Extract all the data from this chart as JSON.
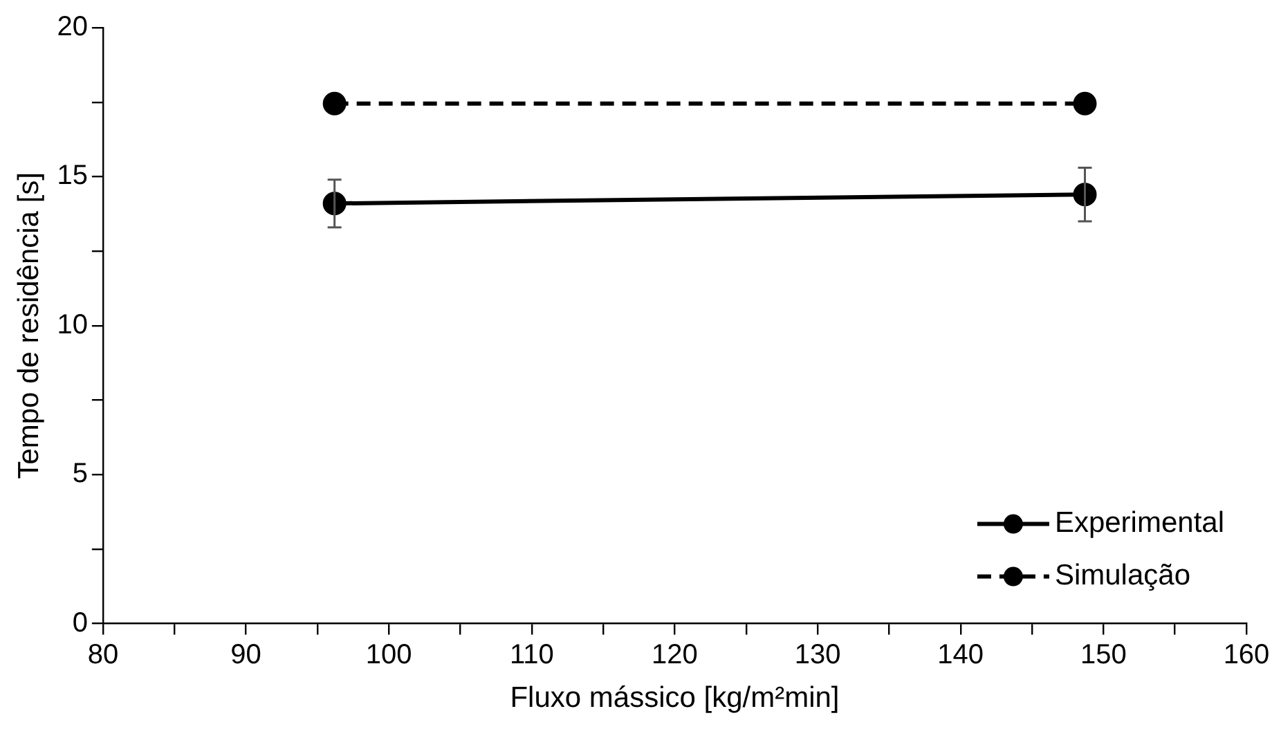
{
  "chart_data": {
    "type": "line",
    "xlabel": "Fluxo mássico [kg/m²min]",
    "ylabel": "Tempo de residência [s]",
    "xlim": [
      80,
      160
    ],
    "xticks": [
      80,
      {
        "value": 85,
        "label": null
      },
      90,
      {
        "value": 95,
        "label": null
      },
      100,
      {
        "value": 105,
        "label": null
      },
      110,
      {
        "value": 115,
        "label": null
      },
      120,
      {
        "value": 125,
        "label": null
      },
      130,
      {
        "value": 135,
        "label": null
      },
      140,
      {
        "value": 145,
        "label": null
      },
      150,
      {
        "value": 155,
        "label": null
      },
      160
    ],
    "ylim": [
      0,
      20
    ],
    "yticks": [
      0,
      {
        "value": 2.5,
        "label": null
      },
      5,
      {
        "value": 7.5,
        "label": null
      },
      10,
      {
        "value": 12.5,
        "label": null
      },
      15,
      {
        "value": 17.5,
        "label": null
      },
      20
    ],
    "x": [
      96.2,
      148.7
    ],
    "grid": false,
    "legend": "bottom right",
    "marker": "circle",
    "series": [
      {
        "name": "Experimental",
        "color": "#000000",
        "line_style": "solid",
        "values": [
          14.1,
          14.4
        ],
        "errors": [
          0.8,
          0.9
        ]
      },
      {
        "name": "Simulação",
        "color": "#000000",
        "line_style": "dashed",
        "values": [
          17.45,
          17.45
        ]
      }
    ]
  }
}
